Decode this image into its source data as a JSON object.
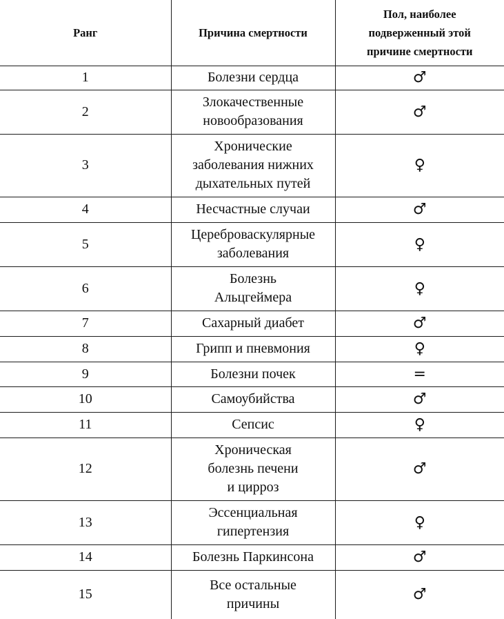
{
  "header": {
    "rank": "Ранг",
    "cause": "Причина смертности",
    "sex": "Пол, наиболее\nподверженный этой\nпричине смертности"
  },
  "rows": [
    {
      "rank": "1",
      "cause": "Болезни сердца",
      "sex": "♂"
    },
    {
      "rank": "2",
      "cause": "Злокачественные\nновообразования",
      "sex": "♂"
    },
    {
      "rank": "3",
      "cause": "Хронические\nзаболевания нижних\nдыхательных путей",
      "sex": "♀"
    },
    {
      "rank": "4",
      "cause": "Несчастные случаи",
      "sex": "♂"
    },
    {
      "rank": "5",
      "cause": "Цереброваскулярные\nзаболевания",
      "sex": "♀"
    },
    {
      "rank": "6",
      "cause": "Болезнь\nАльцгеймера",
      "sex": "♀"
    },
    {
      "rank": "7",
      "cause": "Сахарный диабет",
      "sex": "♂"
    },
    {
      "rank": "8",
      "cause": "Грипп и пневмония",
      "sex": "♀"
    },
    {
      "rank": "9",
      "cause": "Болезни почек",
      "sex": "="
    },
    {
      "rank": "10",
      "cause": "Самоубийства",
      "sex": "♂"
    },
    {
      "rank": "11",
      "cause": "Сепсис",
      "sex": "♀"
    },
    {
      "rank": "12",
      "cause": "Хроническая\nболезнь печени\nи цирроз",
      "sex": "♂"
    },
    {
      "rank": "13",
      "cause": "Эссенциальная\nгипертензия",
      "sex": "♀"
    },
    {
      "rank": "14",
      "cause": "Болезнь Паркинсона",
      "sex": "♂"
    },
    {
      "rank": "15",
      "cause": "Все остальные\nпричины",
      "sex": "♂"
    }
  ]
}
